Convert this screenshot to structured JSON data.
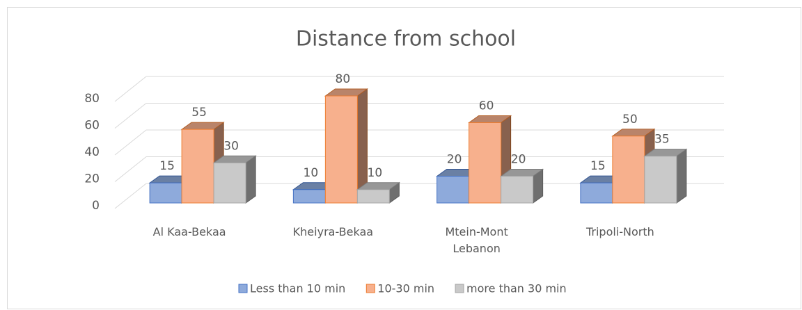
{
  "chart_data": {
    "type": "bar3d",
    "title": "Distance from school",
    "categories": [
      "Al Kaa-Bekaa",
      "Kheiyra-Bekaa",
      "Mtein-Mont Lebanon",
      "Tripoli-North"
    ],
    "series": [
      {
        "name": "Less than 10 min",
        "color": "#8eaadb",
        "edge": "#4472c4",
        "values": [
          15,
          10,
          20,
          15
        ]
      },
      {
        "name": "10-30 min",
        "color": "#f7b08d",
        "edge": "#ed7d31",
        "values": [
          55,
          80,
          60,
          50
        ]
      },
      {
        "name": "more than 30 min",
        "color": "#c9c9c9",
        "edge": "#a5a5a5",
        "values": [
          30,
          10,
          20,
          35
        ]
      }
    ],
    "ylim": [
      0,
      80
    ],
    "yticks": [
      0,
      20,
      40,
      60,
      80
    ],
    "grid": true,
    "legend": "bottom"
  }
}
